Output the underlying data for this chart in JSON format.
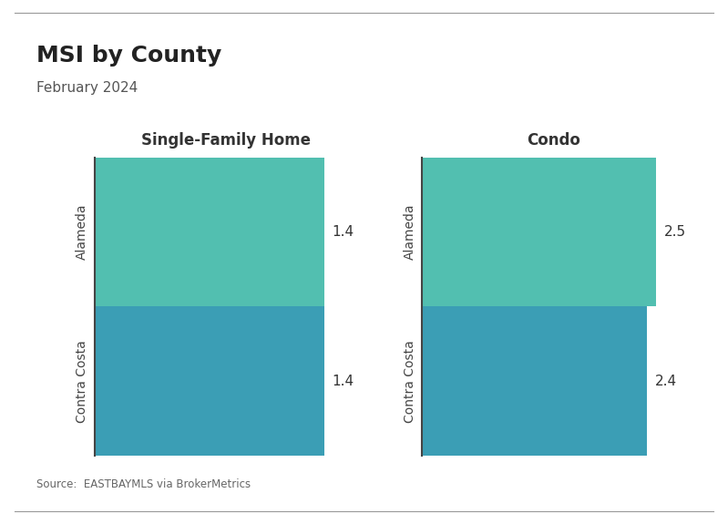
{
  "title": "MSI by County",
  "subtitle": "February 2024",
  "source": "Source:  EASTBAYMLS via BrokerMetrics",
  "panels": [
    {
      "label": "Single-Family Home",
      "categories": [
        "Alameda",
        "Contra Costa"
      ],
      "values": [
        1.4,
        1.4
      ],
      "colors": [
        "#52BFB0",
        "#3B9EB5"
      ],
      "xlim": [
        0,
        1.6
      ]
    },
    {
      "label": "Condo",
      "categories": [
        "Alameda",
        "Contra Costa"
      ],
      "values": [
        2.5,
        2.4
      ],
      "colors": [
        "#52BFB0",
        "#3B9EB5"
      ],
      "xlim": [
        0,
        2.8
      ]
    }
  ],
  "background_color": "#FFFFFF",
  "bar_label_fontsize": 11,
  "title_fontsize": 18,
  "subtitle_fontsize": 11,
  "panel_title_fontsize": 12,
  "category_fontsize": 10,
  "title_color": "#222222",
  "subtitle_color": "#555555",
  "source_color": "#666666",
  "panel_title_color": "#333333",
  "label_color": "#333333"
}
